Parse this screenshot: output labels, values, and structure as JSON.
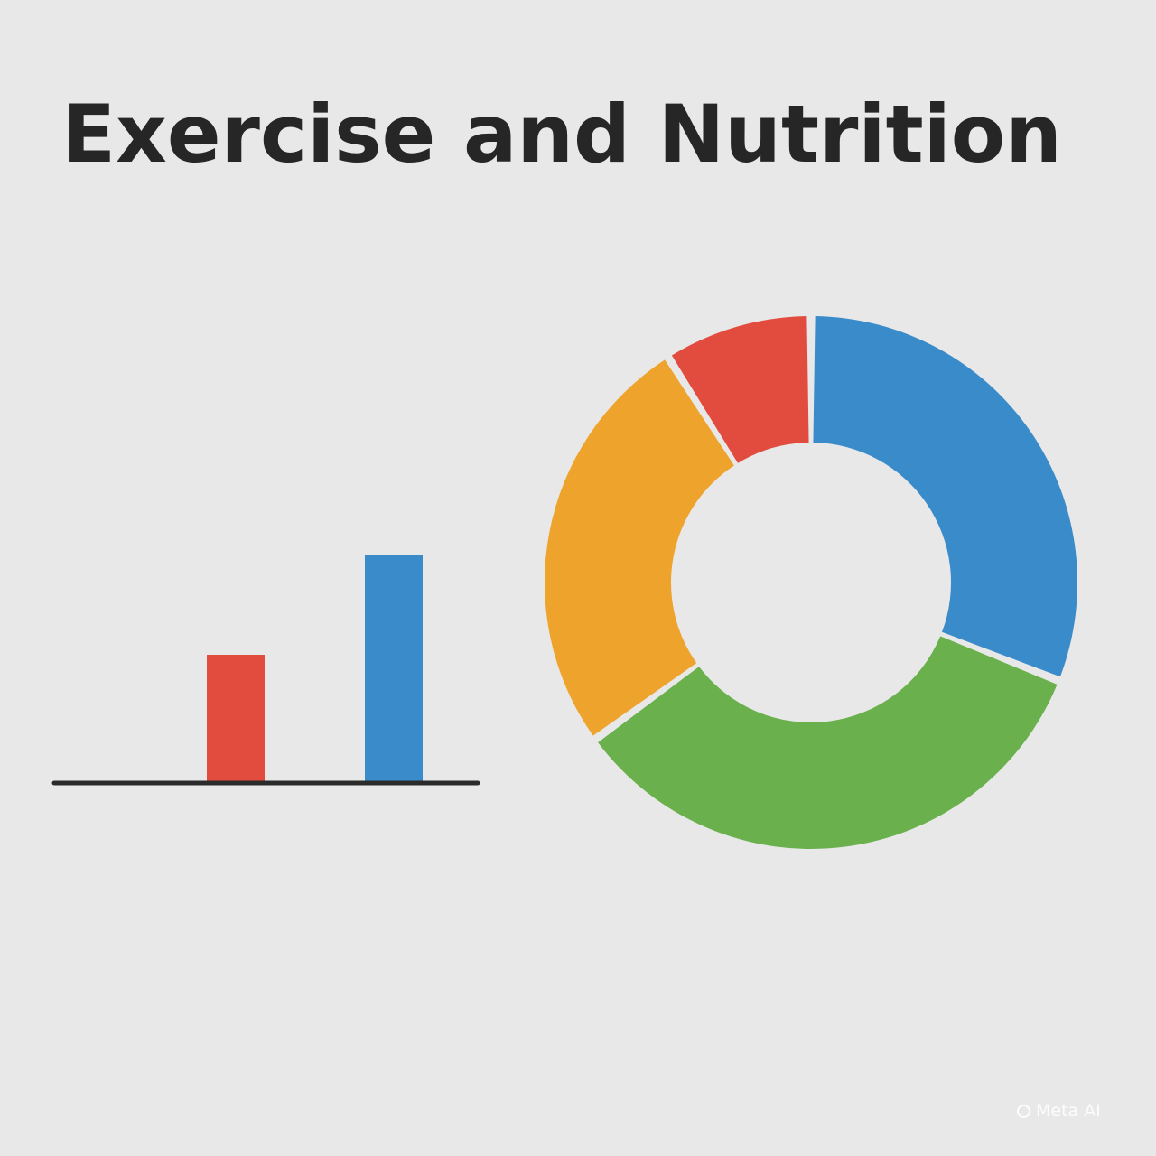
{
  "title": "Exercise and Nutrition",
  "chart_data": [
    {
      "type": "bar",
      "categories": [
        "",
        ""
      ],
      "series": [
        {
          "values": [
            0.56,
            1.0
          ]
        }
      ],
      "colors": [
        "#e24c3f",
        "#3a8bca"
      ],
      "axis_color": "#2b2b2b",
      "grid": false
    },
    {
      "type": "pie",
      "style": "donut",
      "slices": [
        {
          "value": 31,
          "color": "#3a8bca"
        },
        {
          "value": 34,
          "color": "#6ab04c"
        },
        {
          "value": 26,
          "color": "#eea42c"
        },
        {
          "value": 9,
          "color": "#e24c3f"
        }
      ]
    }
  ],
  "watermark": {
    "text": "Meta AI",
    "icon": "meta-ai-ring-icon"
  }
}
